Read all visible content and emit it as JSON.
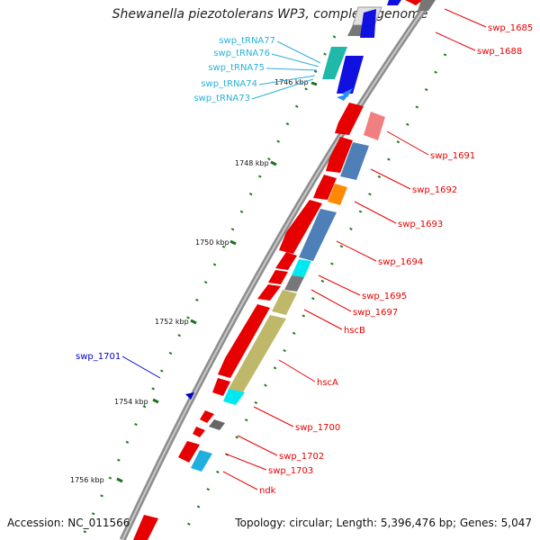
{
  "title": "Shewanella piezotolerans WP3, complete genome",
  "footer": {
    "accession": "Accession: NC_011566",
    "summary": "Topology: circular; Length: 5,396,476 bp; Genes: 5,047"
  },
  "colors": {
    "backbone": "#8a8a8a",
    "tick_dot": "#1f7a1f",
    "tick_major": "#1f6f1f",
    "label_red": "#e60000",
    "label_cyan": "#2ab0d8",
    "label_blue": "#0000c8"
  },
  "ticks": [
    "1746 kbp",
    "1748 kbp",
    "1750 kbp",
    "1752 kbp",
    "1754 kbp",
    "1756 kbp"
  ],
  "labels": {
    "trna": [
      "swp_tRNA77",
      "swp_tRNA76",
      "swp_tRNA75",
      "swp_tRNA74",
      "swp_tRNA73"
    ],
    "right": [
      "swp_1685",
      "swp_1688",
      "swp_1691",
      "swp_1692",
      "swp_1693",
      "swp_1694",
      "swp_1695",
      "swp_1697",
      "hscB",
      "hscA",
      "swp_1700",
      "swp_1702",
      "swp_1703",
      "ndk"
    ],
    "left": [
      "swp_1701"
    ]
  }
}
